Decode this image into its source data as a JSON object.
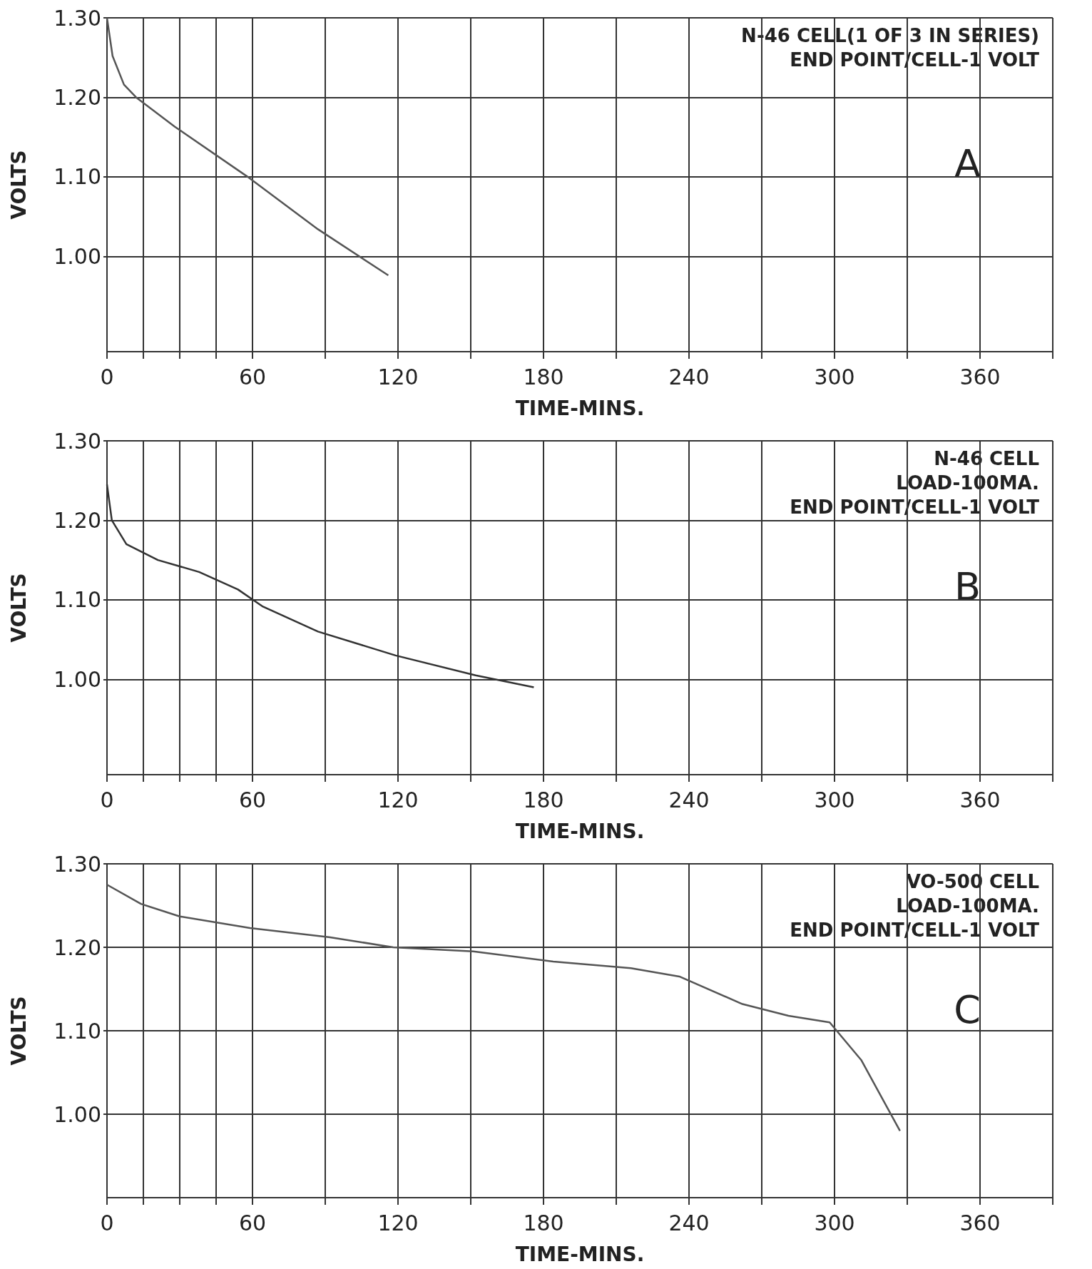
{
  "chart_data": [
    {
      "type": "line",
      "xlabel": "TIME-MINS.",
      "ylabel": "VOLTS",
      "annotations": [
        "N-46 CELL(1 OF 3 IN SERIES)",
        "END POINT/CELL-1 VOLT",
        "A"
      ],
      "x": [
        0,
        2.3,
        7,
        12,
        28,
        58,
        87,
        116
      ],
      "series": [
        {
          "color": "#555555",
          "values": [
            1.3,
            1.252,
            1.216,
            1.2,
            1.163,
            1.1,
            1.034,
            0.976
          ]
        }
      ],
      "xlim": [
        0,
        390
      ],
      "ylim": [
        0.88,
        1.3
      ],
      "xticks": [
        0,
        {
          "value": 15,
          "label": null
        },
        {
          "value": 30,
          "label": null
        },
        {
          "value": 45,
          "label": null
        },
        60,
        {
          "value": 90,
          "label": null
        },
        120,
        {
          "value": 150,
          "label": null
        },
        180,
        {
          "value": 210,
          "label": null
        },
        240,
        {
          "value": 270,
          "label": null
        },
        300,
        {
          "value": 330,
          "label": null
        },
        360,
        {
          "value": 390,
          "label": null
        }
      ],
      "yticks": [
        {
          "value": 1.0,
          "label": "1.00"
        },
        {
          "value": 1.1,
          "label": "1.10"
        },
        {
          "value": 1.2,
          "label": "1.20"
        },
        {
          "value": 1.3,
          "label": "1.30"
        }
      ],
      "grid": true,
      "marker": "none"
    },
    {
      "type": "line",
      "xlabel": "TIME-MINS.",
      "ylabel": "VOLTS",
      "annotations": [
        "N-46 CELL",
        "LOAD-100MA.",
        "END POINT/CELL-1 VOLT",
        "B"
      ],
      "x": [
        0,
        2,
        8,
        21,
        38,
        54,
        64,
        87,
        119,
        152,
        176
      ],
      "series": [
        {
          "color": "#333333",
          "values": [
            1.245,
            1.2,
            1.17,
            1.15,
            1.135,
            1.113,
            1.092,
            1.06,
            1.03,
            1.005,
            0.99
          ]
        }
      ],
      "xlim": [
        0,
        390
      ],
      "ylim": [
        0.88,
        1.3
      ],
      "xticks": [
        0,
        {
          "value": 15,
          "label": null
        },
        {
          "value": 30,
          "label": null
        },
        {
          "value": 45,
          "label": null
        },
        60,
        {
          "value": 90,
          "label": null
        },
        120,
        {
          "value": 150,
          "label": null
        },
        180,
        {
          "value": 210,
          "label": null
        },
        240,
        {
          "value": 270,
          "label": null
        },
        300,
        {
          "value": 330,
          "label": null
        },
        360,
        {
          "value": 390,
          "label": null
        }
      ],
      "yticks": [
        {
          "value": 1.0,
          "label": "1.00"
        },
        {
          "value": 1.1,
          "label": "1.10"
        },
        {
          "value": 1.2,
          "label": "1.20"
        },
        {
          "value": 1.3,
          "label": "1.30"
        }
      ],
      "grid": true,
      "marker": "none"
    },
    {
      "type": "line",
      "xlabel": "TIME-MINS.",
      "ylabel": "VOLTS",
      "annotations": [
        "VO-500 CELL",
        "LOAD-100MA.",
        "END POINT/CELL-1 VOLT",
        "C"
      ],
      "x": [
        0,
        14,
        30,
        59,
        92,
        118,
        151,
        184,
        216,
        236,
        262,
        281,
        298,
        311,
        327
      ],
      "series": [
        {
          "color": "#555555",
          "values": [
            1.275,
            1.252,
            1.237,
            1.223,
            1.212,
            1.2,
            1.195,
            1.183,
            1.175,
            1.165,
            1.132,
            1.118,
            1.11,
            1.065,
            0.98
          ]
        }
      ],
      "xlim": [
        0,
        390
      ],
      "ylim": [
        0.9,
        1.3
      ],
      "xticks": [
        0,
        {
          "value": 15,
          "label": null
        },
        {
          "value": 30,
          "label": null
        },
        {
          "value": 45,
          "label": null
        },
        60,
        {
          "value": 90,
          "label": null
        },
        120,
        {
          "value": 150,
          "label": null
        },
        180,
        {
          "value": 210,
          "label": null
        },
        240,
        {
          "value": 270,
          "label": null
        },
        300,
        {
          "value": 330,
          "label": null
        },
        360,
        {
          "value": 390,
          "label": null
        }
      ],
      "yticks": [
        {
          "value": 1.0,
          "label": "1.00"
        },
        {
          "value": 1.1,
          "label": "1.10"
        },
        {
          "value": 1.2,
          "label": "1.20"
        },
        {
          "value": 1.3,
          "label": "1.30"
        }
      ],
      "grid": true,
      "marker": "none"
    }
  ]
}
